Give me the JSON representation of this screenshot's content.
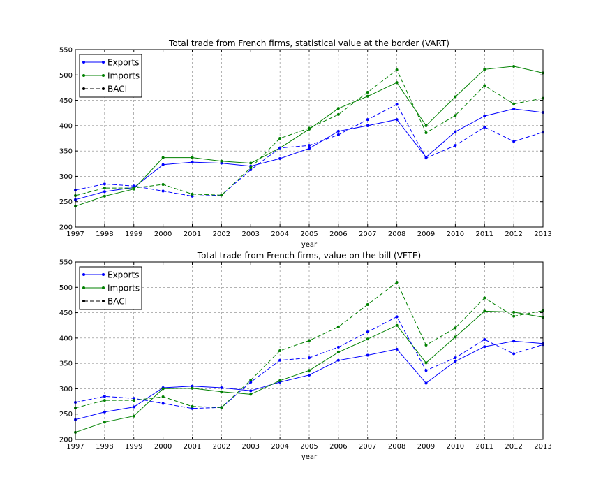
{
  "chart_data": [
    {
      "type": "line",
      "title": "Total trade from French firms, statistical value at the border (VART)",
      "xlabel": "year",
      "ylabel": "",
      "x": [
        1997,
        1998,
        1999,
        2000,
        2001,
        2002,
        2003,
        2004,
        2005,
        2006,
        2007,
        2008,
        2009,
        2010,
        2011,
        2012,
        2013
      ],
      "xlim": [
        1997,
        2013
      ],
      "ylim": [
        200,
        550
      ],
      "yticks": [
        200,
        250,
        300,
        350,
        400,
        450,
        500,
        550
      ],
      "grid": true,
      "legend": "top-left",
      "legend_entries": [
        {
          "label": "Exports",
          "color": "#0000ff",
          "style": "solid"
        },
        {
          "label": "Imports",
          "color": "#008000",
          "style": "solid"
        },
        {
          "label": "BACI",
          "color": "#000000",
          "style": "dashed"
        }
      ],
      "series": [
        {
          "name": "Exports",
          "color": "#0000ff",
          "style": "solid",
          "values": [
            254,
            270,
            278,
            323,
            328,
            326,
            320,
            335,
            355,
            389,
            400,
            412,
            338,
            388,
            419,
            433,
            426
          ]
        },
        {
          "name": "Imports",
          "color": "#008000",
          "style": "solid",
          "values": [
            241,
            261,
            275,
            337,
            337,
            330,
            326,
            356,
            393,
            434,
            458,
            485,
            400,
            457,
            511,
            517,
            504
          ]
        },
        {
          "name": "BACI",
          "color": "#0000ff",
          "style": "dashed",
          "values": [
            273,
            285,
            281,
            271,
            261,
            263,
            313,
            356,
            361,
            382,
            412,
            442,
            336,
            361,
            397,
            369,
            387
          ]
        },
        {
          "name": "BACI",
          "color": "#008000",
          "style": "dashed",
          "values": [
            262,
            277,
            277,
            284,
            265,
            263,
            317,
            375,
            395,
            422,
            466,
            510,
            386,
            420,
            479,
            443,
            454
          ]
        }
      ]
    },
    {
      "type": "line",
      "title": "Total trade from French firms, value on the bill (VFTE)",
      "xlabel": "year",
      "ylabel": "",
      "x": [
        1997,
        1998,
        1999,
        2000,
        2001,
        2002,
        2003,
        2004,
        2005,
        2006,
        2007,
        2008,
        2009,
        2010,
        2011,
        2012,
        2013
      ],
      "xlim": [
        1997,
        2013
      ],
      "ylim": [
        200,
        550
      ],
      "yticks": [
        200,
        250,
        300,
        350,
        400,
        450,
        500,
        550
      ],
      "grid": true,
      "legend": "top-left",
      "legend_entries": [
        {
          "label": "Exports",
          "color": "#0000ff",
          "style": "solid"
        },
        {
          "label": "Imports",
          "color": "#008000",
          "style": "solid"
        },
        {
          "label": "BACI",
          "color": "#000000",
          "style": "dashed"
        }
      ],
      "series": [
        {
          "name": "Exports",
          "color": "#0000ff",
          "style": "solid",
          "values": [
            239,
            254,
            264,
            302,
            305,
            302,
            296,
            313,
            327,
            356,
            366,
            378,
            311,
            354,
            383,
            394,
            389
          ]
        },
        {
          "name": "Imports",
          "color": "#008000",
          "style": "solid",
          "values": [
            214,
            234,
            246,
            300,
            301,
            294,
            289,
            316,
            336,
            372,
            398,
            425,
            351,
            402,
            453,
            451,
            441
          ]
        },
        {
          "name": "BACI",
          "color": "#0000ff",
          "style": "dashed",
          "values": [
            273,
            285,
            281,
            271,
            261,
            263,
            313,
            356,
            361,
            382,
            412,
            442,
            336,
            361,
            397,
            369,
            387
          ]
        },
        {
          "name": "BACI",
          "color": "#008000",
          "style": "dashed",
          "values": [
            262,
            277,
            277,
            284,
            265,
            263,
            317,
            375,
            395,
            422,
            466,
            510,
            386,
            420,
            479,
            443,
            454
          ]
        }
      ]
    }
  ]
}
